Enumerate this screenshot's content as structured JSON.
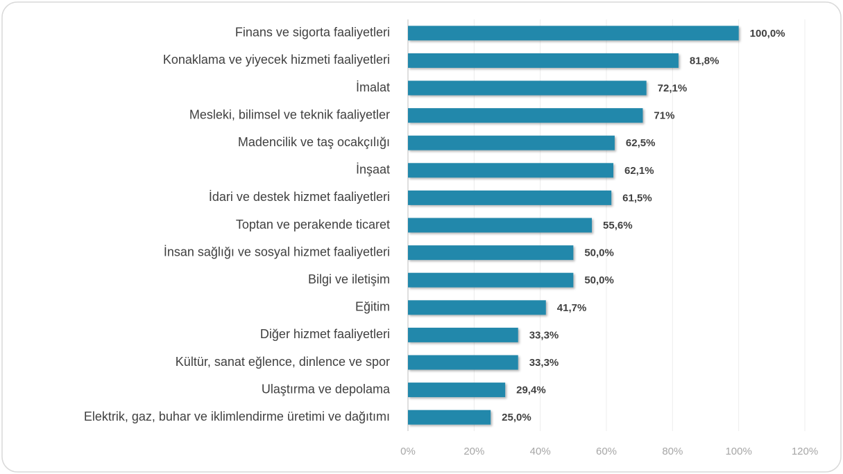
{
  "chart_data": {
    "type": "bar",
    "orientation": "horizontal",
    "categories": [
      "Finans ve sigorta faaliyetleri",
      "Konaklama ve yiyecek hizmeti faaliyetleri",
      "İmalat",
      "Mesleki, bilimsel ve teknik faaliyetler",
      "Madencilik ve taş ocakçılığı",
      "İnşaat",
      "İdari ve destek hizmet faaliyetleri",
      "Toptan ve perakende ticaret",
      "İnsan sağlığı ve sosyal hizmet faaliyetleri",
      "Bilgi ve iletişim",
      "Eğitim",
      "Diğer hizmet faaliyetleri",
      "Kültür, sanat eğlence, dinlence ve spor",
      "Ulaştırma ve depolama",
      "Elektrik, gaz, buhar ve iklimlendirme üretimi ve dağıtımı"
    ],
    "values": [
      100,
      81.8,
      72.1,
      71,
      62.5,
      62.1,
      61.5,
      55.6,
      50,
      50,
      41.7,
      33.3,
      33.3,
      29.4,
      25
    ],
    "value_labels": [
      "100,0%",
      "81,8%",
      "72,1%",
      "71%",
      "62,5%",
      "62,1%",
      "61,5%",
      "55,6%",
      "50,0%",
      "50,0%",
      "41,7%",
      "33,3%",
      "33,3%",
      "29,4%",
      "25,0%"
    ],
    "color": "#2088ab",
    "xlim": [
      0,
      120
    ],
    "xticks": [
      {
        "value": 0,
        "label": "0%"
      },
      {
        "value": 20,
        "label": "20%"
      },
      {
        "value": 40,
        "label": "40%"
      },
      {
        "value": 60,
        "label": "60%"
      },
      {
        "value": 80,
        "label": "80%"
      },
      {
        "value": 100,
        "label": "100%"
      },
      {
        "value": 120,
        "label": "120%"
      }
    ],
    "grid": true
  }
}
